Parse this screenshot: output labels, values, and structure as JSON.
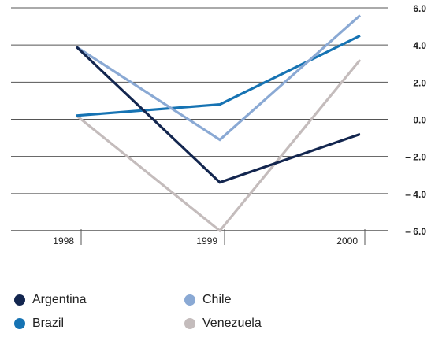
{
  "chart_data": {
    "type": "line",
    "x": [
      "1998",
      "1999",
      "2000"
    ],
    "y_ticks": [
      "6.0",
      "4.0",
      "2.0",
      "0.0",
      "– 2.0",
      "– 4.0",
      "– 6.0"
    ],
    "ylim": [
      -6,
      6
    ],
    "y_axis_position": "right",
    "grid": true,
    "legend_placement": "bottom",
    "series": [
      {
        "name": "Argentina",
        "color": "#13264f",
        "values": [
          3.9,
          -3.4,
          -0.8
        ]
      },
      {
        "name": "Brazil",
        "color": "#1673b3",
        "values": [
          0.2,
          0.8,
          4.5
        ]
      },
      {
        "name": "Chile",
        "color": "#8aa9d4",
        "values": [
          3.9,
          -1.1,
          5.6
        ]
      },
      {
        "name": "Venezuela",
        "color": "#c4bcbc",
        "values": [
          0.2,
          -6.0,
          3.2
        ]
      }
    ]
  }
}
